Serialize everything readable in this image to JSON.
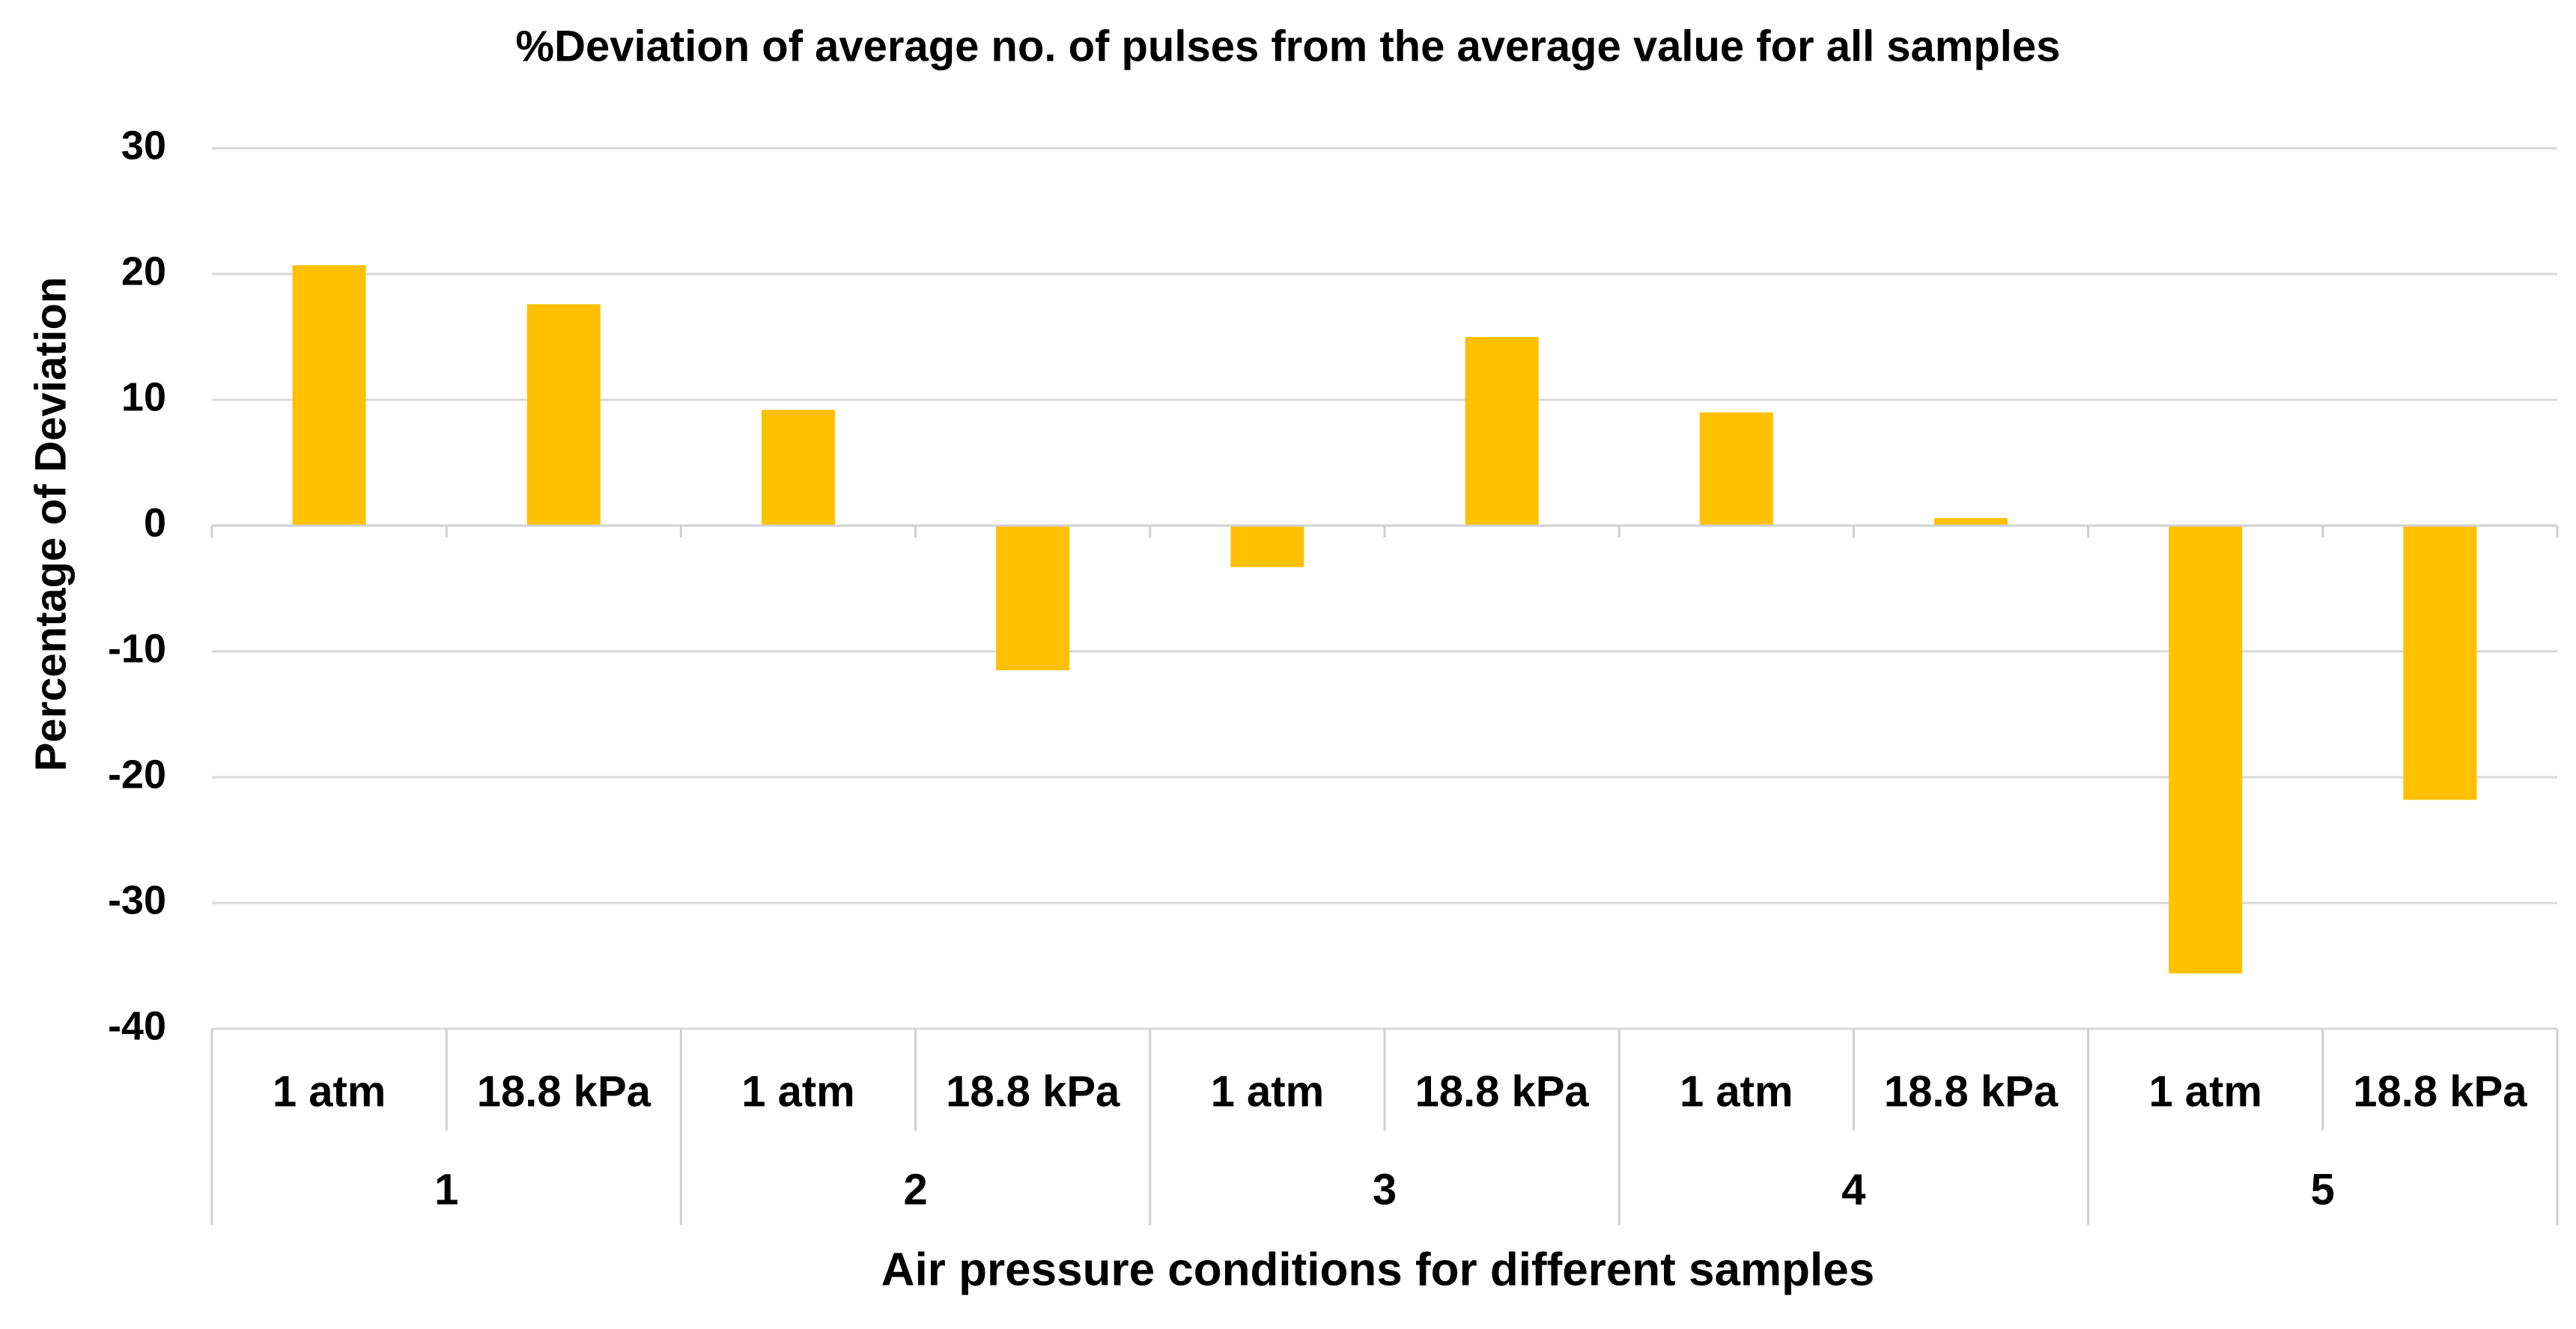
{
  "chart_data": {
    "type": "bar",
    "title": "%Deviation of average no. of pulses from the average value for all samples",
    "xlabel": "Air pressure conditions for different samples",
    "ylabel": "Percentage of Deviation",
    "ylim": [
      -40,
      30
    ],
    "yticks": [
      "30",
      "20",
      "10",
      "0",
      "-10",
      "-20",
      "-30",
      "-40"
    ],
    "ytick_values": [
      30,
      20,
      10,
      0,
      -10,
      -20,
      -30,
      -40
    ],
    "grid": true,
    "legend": "none",
    "groups": [
      {
        "label": "1",
        "categories": [
          "1 atm",
          "18.8 kPa"
        ],
        "values": [
          20.7,
          17.6
        ]
      },
      {
        "label": "2",
        "categories": [
          "1 atm",
          "18.8 kPa"
        ],
        "values": [
          9.2,
          -11.5
        ]
      },
      {
        "label": "3",
        "categories": [
          "1 atm",
          "18.8 kPa"
        ],
        "values": [
          -3.3,
          15.0
        ]
      },
      {
        "label": "4",
        "categories": [
          "1 atm",
          "18.8 kPa"
        ],
        "values": [
          9.0,
          0.6
        ]
      },
      {
        "label": "5",
        "categories": [
          "1 atm",
          "18.8 kPa"
        ],
        "values": [
          -35.6,
          -21.8
        ]
      }
    ],
    "bar_color": "#FFC000"
  },
  "colors": {
    "gridline": "#D9D9D9",
    "axis": "#D0D0D0",
    "text": "#000000",
    "background": "#FFFFFF"
  }
}
